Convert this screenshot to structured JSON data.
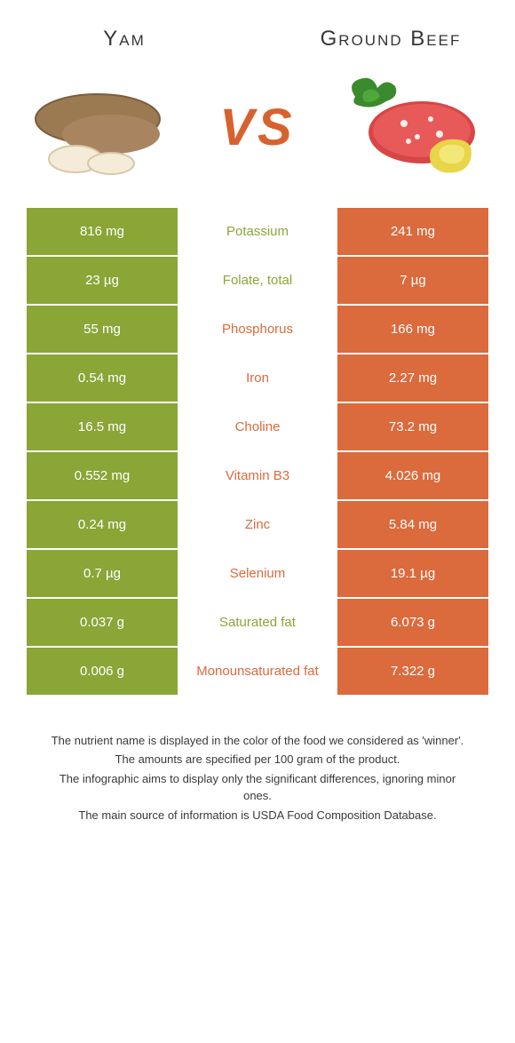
{
  "colors": {
    "left": "#89a637",
    "right": "#db6a3c",
    "vs": "#d7622f",
    "text": "#353535"
  },
  "header": {
    "left_title": "Yam",
    "right_title": "Ground Beef",
    "vs": "VS"
  },
  "rows": [
    {
      "left": "816 mg",
      "label": "Potassium",
      "right": "241 mg",
      "winner": "left"
    },
    {
      "left": "23 µg",
      "label": "Folate, total",
      "right": "7 µg",
      "winner": "left"
    },
    {
      "left": "55 mg",
      "label": "Phosphorus",
      "right": "166 mg",
      "winner": "right"
    },
    {
      "left": "0.54 mg",
      "label": "Iron",
      "right": "2.27 mg",
      "winner": "right"
    },
    {
      "left": "16.5 mg",
      "label": "Choline",
      "right": "73.2 mg",
      "winner": "right"
    },
    {
      "left": "0.552 mg",
      "label": "Vitamin B3",
      "right": "4.026 mg",
      "winner": "right"
    },
    {
      "left": "0.24 mg",
      "label": "Zinc",
      "right": "5.84 mg",
      "winner": "right"
    },
    {
      "left": "0.7 µg",
      "label": "Selenium",
      "right": "19.1 µg",
      "winner": "right"
    },
    {
      "left": "0.037 g",
      "label": "Saturated fat",
      "right": "6.073 g",
      "winner": "left"
    },
    {
      "left": "0.006 g",
      "label": "Monounsaturated fat",
      "right": "7.322 g",
      "winner": "right"
    }
  ],
  "footer": {
    "line1": "The nutrient name is displayed in the color of the food we considered as 'winner'.",
    "line2": "The amounts are specified per 100 gram of the product.",
    "line3": "The infographic aims to display only the significant differences, ignoring minor ones.",
    "line4": "The main source of information is USDA Food Composition Database."
  }
}
